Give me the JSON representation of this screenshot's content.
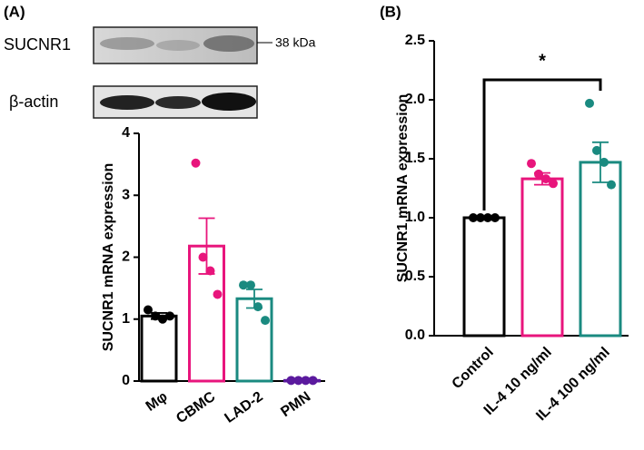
{
  "blot": {
    "panel": "(A)",
    "labels": [
      "SUCNR1",
      "β-actin"
    ],
    "marker": "38 kDa"
  },
  "chart_data": [
    {
      "type": "bar",
      "ylabel": "SUCNR1 mRNA expression",
      "categories": [
        "Mφ",
        "CBMC",
        "LAD-2",
        "PMN"
      ],
      "values": [
        1.05,
        2.18,
        1.33,
        0.01
      ],
      "errors": [
        0.05,
        0.45,
        0.15,
        0.01
      ],
      "points": [
        [
          1.15,
          1.05,
          1.0,
          1.05
        ],
        [
          3.52,
          2.0,
          1.78,
          1.4
        ],
        [
          1.55,
          1.55,
          1.2,
          0.98
        ],
        [
          0.01,
          0.01,
          0.01,
          0.01
        ]
      ],
      "colors": [
        "#000000",
        "#e8157c",
        "#1a8a80",
        "#5b1a9e"
      ],
      "ylim": [
        0,
        4
      ],
      "yticks": [
        0,
        1,
        2,
        3,
        4
      ]
    },
    {
      "type": "bar",
      "panel": "(B)",
      "ylabel": "SUCNR1 mRNA expression",
      "categories": [
        "Control",
        "IL-4 10 ng/ml",
        "IL-4 100 ng/ml"
      ],
      "values": [
        1.0,
        1.33,
        1.47
      ],
      "errors": [
        0.0,
        0.05,
        0.17
      ],
      "points": [
        [
          1.0,
          1.0,
          1.0,
          1.0
        ],
        [
          1.46,
          1.37,
          1.33,
          1.29
        ],
        [
          1.97,
          1.57,
          1.47,
          1.28
        ]
      ],
      "colors": [
        "#000000",
        "#e8157c",
        "#1a8a80"
      ],
      "ylim": [
        0,
        2.5
      ],
      "yticks": [
        {
          "value": 0,
          "label": "0.0"
        },
        0.5,
        {
          "value": 1,
          "label": "1.0"
        },
        1.5,
        {
          "value": 2,
          "label": "2.0"
        },
        2.5
      ],
      "annotation": "*"
    }
  ]
}
